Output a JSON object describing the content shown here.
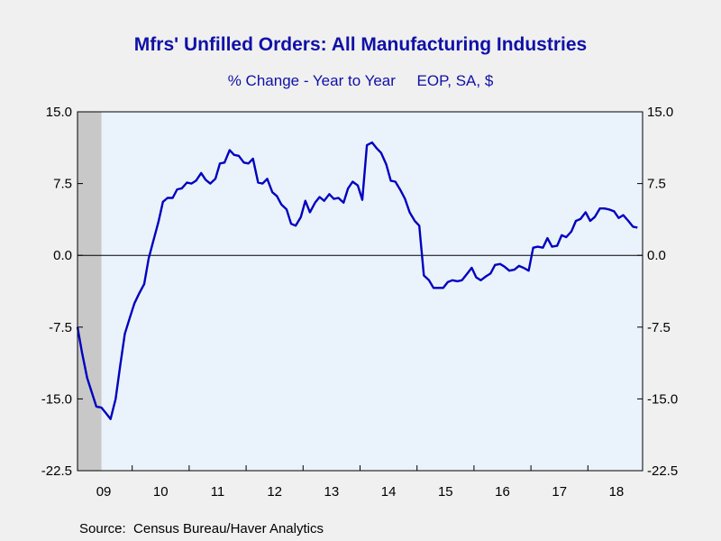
{
  "title": "Mfrs' Unfilled Orders: All Manufacturing Industries",
  "subtitle": "% Change - Year to Year     EOP, SA, $",
  "source": "Source:  Census Bureau/Haver Analytics",
  "colors": {
    "line": "#0000c0",
    "plot_background": "#eaf2fc",
    "recession_shading": "#c8c8c8",
    "zero_line": "#000000"
  },
  "chart_data": {
    "type": "line",
    "title": "Mfrs' Unfilled Orders: All Manufacturing Industries",
    "subtitle": "% Change - Year to Year     EOP, SA, $",
    "xlabel": "",
    "ylabel": "",
    "ylim": [
      -22.5,
      15.0
    ],
    "yticks": [
      15.0,
      7.5,
      0.0,
      -7.5,
      -15.0,
      -22.5
    ],
    "ytick_labels": [
      "15.0",
      "7.5",
      "0.0",
      "-7.5",
      "-15.0",
      "-22.5"
    ],
    "xtick_labels": [
      "09",
      "10",
      "11",
      "12",
      "13",
      "14",
      "15",
      "16",
      "17",
      "18"
    ],
    "grid": false,
    "recession_shading": [
      [
        2009.0,
        2009.42
      ]
    ],
    "series": [
      {
        "name": "",
        "x": [
          2009.0,
          2009.08,
          2009.17,
          2009.25,
          2009.33,
          2009.42,
          2009.5,
          2009.58,
          2009.67,
          2009.75,
          2009.83,
          2009.92,
          2010.0,
          2010.08,
          2010.17,
          2010.25,
          2010.33,
          2010.42,
          2010.5,
          2010.58,
          2010.67,
          2010.75,
          2010.83,
          2010.92,
          2011.0,
          2011.08,
          2011.17,
          2011.25,
          2011.33,
          2011.42,
          2011.5,
          2011.58,
          2011.67,
          2011.75,
          2011.83,
          2011.92,
          2012.0,
          2012.08,
          2012.17,
          2012.25,
          2012.33,
          2012.42,
          2012.5,
          2012.58,
          2012.67,
          2012.75,
          2012.83,
          2012.92,
          2013.0,
          2013.08,
          2013.17,
          2013.25,
          2013.33,
          2013.42,
          2013.5,
          2013.58,
          2013.67,
          2013.75,
          2013.83,
          2013.92,
          2014.0,
          2014.08,
          2014.17,
          2014.25,
          2014.33,
          2014.42,
          2014.5,
          2014.58,
          2014.67,
          2014.75,
          2014.83,
          2014.92,
          2015.0,
          2015.08,
          2015.17,
          2015.25,
          2015.33,
          2015.42,
          2015.5,
          2015.58,
          2015.67,
          2015.75,
          2015.83,
          2015.92,
          2016.0,
          2016.08,
          2016.17,
          2016.25,
          2016.33,
          2016.42,
          2016.5,
          2016.58,
          2016.67,
          2016.75,
          2016.83,
          2016.92,
          2017.0,
          2017.08,
          2017.17,
          2017.25,
          2017.33,
          2017.42,
          2017.5,
          2017.58,
          2017.67,
          2017.75,
          2017.83,
          2017.92,
          2018.0,
          2018.08,
          2018.17,
          2018.25,
          2018.33,
          2018.42,
          2018.5,
          2018.58,
          2018.67,
          2018.75,
          2018.83
        ],
        "values": [
          -7.5,
          -10.2,
          -12.8,
          -14.3,
          -15.8,
          -15.9,
          -16.5,
          -17.1,
          -15.0,
          -11.5,
          -8.2,
          -6.5,
          -5.0,
          -4.0,
          -3.0,
          -0.3,
          1.5,
          3.5,
          5.6,
          6.0,
          6.0,
          6.9,
          7.0,
          7.6,
          7.5,
          7.8,
          8.6,
          7.9,
          7.5,
          8.0,
          9.6,
          9.7,
          11.0,
          10.5,
          10.4,
          9.7,
          9.6,
          10.1,
          7.6,
          7.5,
          8.0,
          6.6,
          6.2,
          5.3,
          4.8,
          3.3,
          3.1,
          4.0,
          5.7,
          4.5,
          5.5,
          6.1,
          5.7,
          6.4,
          5.9,
          6.0,
          5.5,
          7.0,
          7.7,
          7.3,
          5.8,
          11.5,
          11.8,
          11.2,
          10.7,
          9.5,
          7.8,
          7.7,
          6.8,
          5.9,
          4.5,
          3.6,
          3.1,
          -2.1,
          -2.6,
          -3.4,
          -3.4,
          -3.4,
          -2.8,
          -2.6,
          -2.7,
          -2.6,
          -2.0,
          -1.3,
          -2.3,
          -2.6,
          -2.2,
          -1.9,
          -1.0,
          -0.9,
          -1.2,
          -1.6,
          -1.5,
          -1.1,
          -1.3,
          -1.6,
          0.8,
          0.9,
          0.8,
          1.8,
          0.9,
          1.0,
          2.1,
          1.9,
          2.5,
          3.6,
          3.8,
          4.5,
          3.6,
          4.0,
          4.9,
          4.9,
          4.8,
          4.6,
          3.9,
          4.2,
          3.6,
          3.0,
          2.9
        ]
      }
    ]
  }
}
